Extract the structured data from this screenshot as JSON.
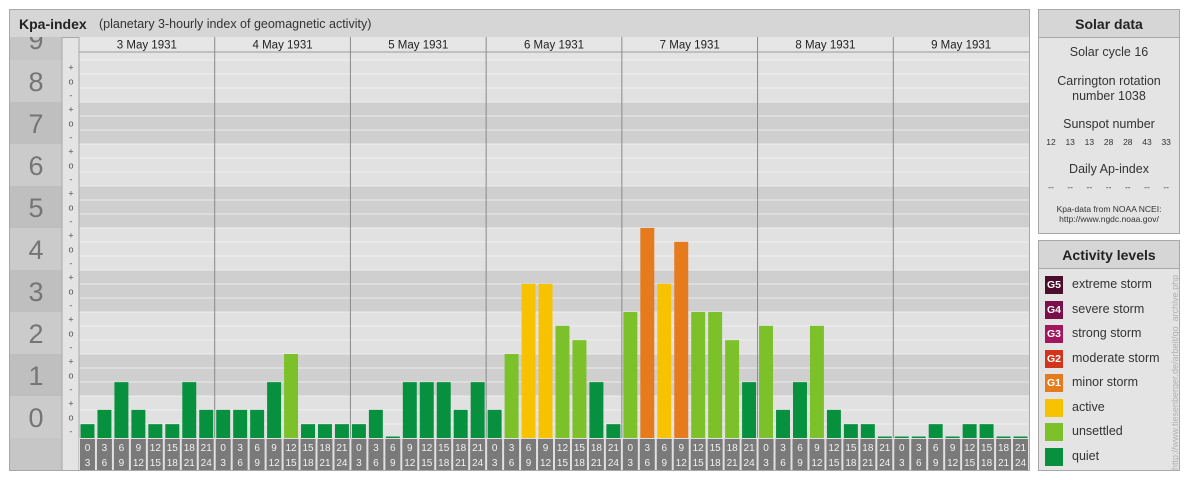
{
  "header": {
    "title": "Kpa-index",
    "subtitle": "(planetary 3-hourly index of geomagnetic activity)"
  },
  "solar": {
    "title": "Solar data",
    "cycle": "Solar cycle 16",
    "carrington_line1": "Carrington rotation",
    "carrington_line2": "number 1038",
    "sunspot_label": "Sunspot number",
    "sunspot_values": [
      "12",
      "13",
      "13",
      "28",
      "28",
      "43",
      "33"
    ],
    "ap_label": "Daily Ap-index",
    "ap_values": [
      "--",
      "--",
      "--",
      "--",
      "--",
      "--",
      "--"
    ],
    "source_line1": "Kpa-data from NOAA NCEI:",
    "source_line2": "http://www.ngdc.noaa.gov/"
  },
  "levels": {
    "title": "Activity levels",
    "items": [
      {
        "badge": "G5",
        "label": "extreme storm",
        "color": "#4c0d2c"
      },
      {
        "badge": "G4",
        "label": "severe storm",
        "color": "#7a0f4a"
      },
      {
        "badge": "G3",
        "label": "strong storm",
        "color": "#a3165e"
      },
      {
        "badge": "G2",
        "label": "moderate storm",
        "color": "#d1361c"
      },
      {
        "badge": "G1",
        "label": "minor storm",
        "color": "#e57b1c"
      },
      {
        "badge": "",
        "label": "active",
        "color": "#f7c200"
      },
      {
        "badge": "",
        "label": "unsettled",
        "color": "#7cc12a"
      },
      {
        "badge": "",
        "label": "quiet",
        "color": "#07913f"
      }
    ]
  },
  "credit": "http://www.tiesenberger.de/arbeit/go_archive.php",
  "chart_data": {
    "type": "bar",
    "title": "Kpa-index",
    "subtitle": "(planetary 3-hourly index of geomagnetic activity)",
    "ylim": [
      0,
      9
    ],
    "y_ticks": [
      "0",
      "1",
      "2",
      "3",
      "4",
      "5",
      "6",
      "7",
      "8",
      "9"
    ],
    "y_subticks": [
      "-",
      "o",
      "+"
    ],
    "days": [
      "3 May 1931",
      "4 May 1931",
      "5 May 1931",
      "6 May 1931",
      "7 May 1931",
      "8 May 1931",
      "9 May 1931"
    ],
    "interval_start": [
      "0",
      "3",
      "6",
      "9",
      "12",
      "15",
      "18",
      "21"
    ],
    "interval_end": [
      "3",
      "6",
      "9",
      "12",
      "15",
      "18",
      "21",
      "24"
    ],
    "values": [
      [
        0.33,
        0.67,
        1.33,
        0.67,
        0.33,
        0.33,
        1.33,
        0.67
      ],
      [
        0.67,
        0.67,
        0.67,
        1.33,
        2.0,
        0.33,
        0.33,
        0.33
      ],
      [
        0.33,
        0.67,
        0.0,
        1.33,
        1.33,
        1.33,
        0.67,
        1.33
      ],
      [
        0.67,
        2.0,
        3.67,
        3.67,
        2.67,
        2.33,
        1.33,
        0.33
      ],
      [
        3.0,
        5.0,
        3.67,
        4.67,
        3.0,
        3.0,
        2.33,
        1.33
      ],
      [
        2.67,
        0.67,
        1.33,
        2.67,
        0.67,
        0.33,
        0.33,
        0.0
      ],
      [
        0.0,
        0.0,
        0.33,
        0.0,
        0.33,
        0.33,
        0.0,
        0.0
      ]
    ],
    "level_colors": {
      "quiet": "#07913f",
      "unsettled": "#7cc12a",
      "active": "#f7c200",
      "minor_storm": "#e57b1c"
    },
    "grid": true
  }
}
